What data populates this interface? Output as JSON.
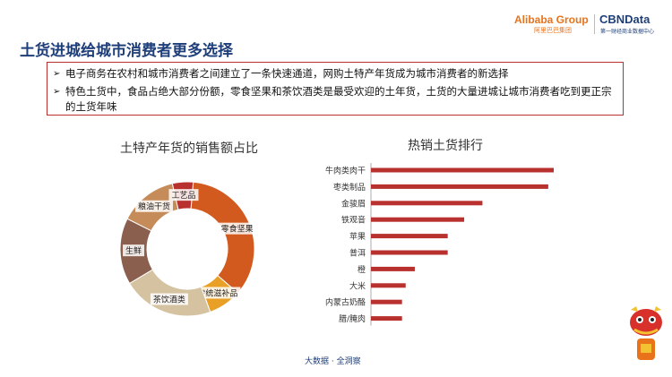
{
  "header": {
    "title": "土货进城给城市消费者更多选择",
    "logo_alibaba": "Alibaba Group",
    "logo_alibaba_sub": "阿里巴巴集团",
    "logo_cbn": "CBNData",
    "logo_cbn_sub": "第一财经商业数据中心"
  },
  "bullets": [
    "电子商务在农村和城市消费者之间建立了一条快速通道，网购土特产年货成为城市消费者的新选择",
    "特色土货中，食品占绝大部分份额，零食坚果和茶饮酒类是最受欢迎的土年货，土货的大量进城让城市消费者吃到更正宗的土货年味"
  ],
  "footer": "大数据 · 全洞察",
  "icons": {
    "bullet": "arrow-right-icon",
    "mascot": "lion-dance-mascot-icon",
    "logo": "alibaba-logo-icon"
  },
  "colors": {
    "accent": "#b8312f",
    "title": "#1f3f7a"
  },
  "chart_data": [
    {
      "type": "pie",
      "title": "土特产年货的销售额占比",
      "donut": true,
      "slices": [
        {
          "label": "零食坚果",
          "value": 35,
          "color": "#d35a1e"
        },
        {
          "label": "传统滋补品",
          "value": 8,
          "color": "#e8a026"
        },
        {
          "label": "茶饮酒类",
          "value": 22,
          "color": "#d5c2a0"
        },
        {
          "label": "生鲜",
          "value": 16,
          "color": "#8a5f4e"
        },
        {
          "label": "粮油干货",
          "value": 14,
          "color": "#c58c5a"
        },
        {
          "label": "工艺品",
          "value": 5,
          "color": "#b8312f"
        }
      ]
    },
    {
      "type": "bar",
      "orientation": "horizontal",
      "title": "热销土货排行",
      "categories": [
        "牛肉类肉干",
        "枣类制品",
        "金骏眉",
        "铁观音",
        "苹果",
        "普洱",
        "橙",
        "大米",
        "内蒙古奶酪",
        "腊/腌肉"
      ],
      "values": [
        100,
        97,
        61,
        51,
        42,
        42,
        24,
        19,
        17,
        17
      ],
      "color": "#b8312f",
      "xlim": [
        0,
        100
      ]
    }
  ]
}
